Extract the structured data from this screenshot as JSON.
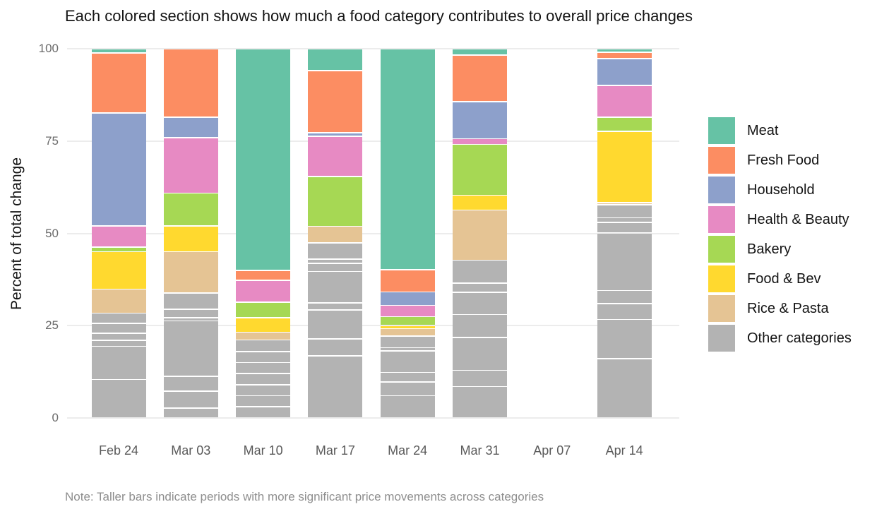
{
  "chart_data": {
    "type": "bar",
    "variant": "stacked-percent",
    "title": "Each colored section shows how much a food category contributes to overall price changes",
    "ylabel": "Percent of total change",
    "note": "Note: Taller bars indicate periods with more significant price movements across categories",
    "ylim": [
      0,
      100
    ],
    "yticks": [
      0,
      25,
      50,
      75,
      100
    ],
    "grid": "horizontal",
    "legend_position": "right",
    "background": "#ffffff",
    "gridline_color": "#ececec",
    "categories": [
      "Feb 24",
      "Mar 03",
      "Mar 10",
      "Mar 17",
      "Mar 24",
      "Mar 31",
      "Apr 07",
      "Apr 14"
    ],
    "series": [
      {
        "name": "Meat",
        "color": "#66C2A5",
        "values": [
          1.1,
          0,
          60.0,
          5.9,
          59.8,
          1.7,
          0,
          1.0
        ]
      },
      {
        "name": "Fresh Food",
        "color": "#FC8D62",
        "values": [
          16.3,
          18.5,
          2.7,
          16.8,
          6.1,
          12.6,
          0,
          1.7
        ]
      },
      {
        "name": "Household",
        "color": "#8DA0CB",
        "values": [
          30.6,
          5.6,
          0,
          1.0,
          3.6,
          10.1,
          0,
          7.3
        ]
      },
      {
        "name": "Health & Beauty",
        "color": "#E78AC3",
        "values": [
          5.7,
          15.0,
          5.9,
          10.9,
          3.1,
          1.5,
          0,
          8.6
        ]
      },
      {
        "name": "Bakery",
        "color": "#A6D854",
        "values": [
          1.3,
          8.9,
          4.2,
          13.5,
          2.4,
          13.8,
          0,
          3.8
        ]
      },
      {
        "name": "Food & Bev",
        "color": "#FFD92F",
        "values": [
          10.1,
          7.0,
          4.0,
          0,
          0.8,
          4.0,
          0,
          19.3
        ]
      },
      {
        "name": "Rice & Pasta",
        "color": "#E5C494",
        "values": [
          6.5,
          11.2,
          2.1,
          4.5,
          2.0,
          13.6,
          0,
          0.6
        ]
      },
      {
        "name": "Other categories",
        "color": "#B3B3B3",
        "values": [
          28.4,
          33.8,
          21.1,
          47.4,
          22.2,
          42.7,
          0,
          57.7
        ]
      }
    ],
    "other_subsegments": [
      [
        2.8,
        2.6,
        2.0,
        1.6,
        9.0,
        10.4
      ],
      [
        4.4,
        2.2,
        0.9,
        15.0,
        4.0,
        4.6,
        2.7
      ],
      [
        3.1,
        3.0,
        3.0,
        3.0,
        3.0,
        3.0,
        3.0
      ],
      [
        4.4,
        1.1,
        2.2,
        8.5,
        2.0,
        7.8,
        4.6,
        16.8
      ],
      [
        3.2,
        0.8,
        5.9,
        2.6,
        3.7,
        6.0
      ],
      [
        6.2,
        2.5,
        6.0,
        6.2,
        8.9,
        4.4,
        8.5
      ],
      [],
      [
        3.5,
        1.2,
        2.9,
        15.6,
        3.5,
        4.3,
        10.6,
        16.1
      ]
    ]
  }
}
